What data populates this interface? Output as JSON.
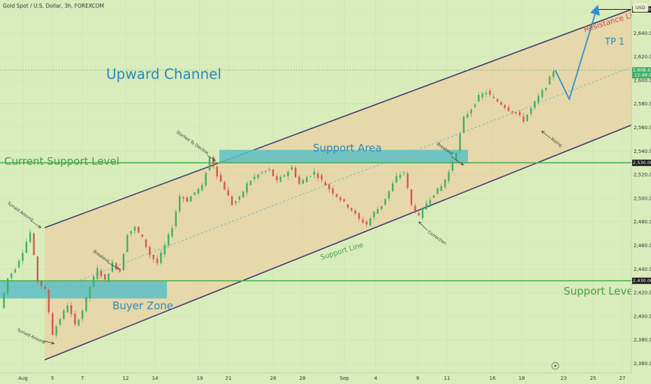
{
  "header": {
    "symbol_title": "Gold Spot / U.S. Dollar, 3h, FOREXCOM",
    "currency_button": "USD"
  },
  "colors": {
    "background": "#d9ecbc",
    "channel_line": "#3d3a6e",
    "channel_fill": "#f1c89a",
    "level_line": "#4caf50",
    "zone_fill": "#5cc0c6",
    "title_text": "#2b89ba",
    "label_text": "#43a047",
    "resistance_text": "#c0504d",
    "candle_up": "#3fae66",
    "candle_down": "#d9534f",
    "projection": "#2e8fd0"
  },
  "icons": {
    "bolt": "lightning-icon"
  },
  "chart_data": {
    "type": "candlestick",
    "title": "",
    "x_ticks": [
      "Aug",
      "5",
      "7",
      "12",
      "14",
      "19",
      "21",
      "26",
      "28",
      "Sep",
      "4",
      "9",
      "11",
      "16",
      "18",
      "23",
      "25",
      "27"
    ],
    "y_ticks": [
      2360,
      2380,
      2400,
      2420,
      2440,
      2460,
      2480,
      2500,
      2520,
      2540,
      2560,
      2580,
      2600,
      2620,
      2640,
      2660
    ],
    "ylim": [
      2352,
      2668
    ],
    "price_labels": [
      {
        "text": "2,660.00",
        "value": 2660,
        "color": "#1b1b1b"
      },
      {
        "text": "2,608.41",
        "sub": "12:49:03",
        "value": 2608.41,
        "color": "#3fae66"
      },
      {
        "text": "2,530.00",
        "value": 2530,
        "color": "#1b1b1b"
      },
      {
        "text": "2,430.00",
        "value": 2430,
        "color": "#1b1b1b"
      }
    ],
    "close_path": [
      2407,
      2432,
      2441,
      2455,
      2471,
      2430,
      2422,
      2385,
      2398,
      2410,
      2392,
      2405,
      2425,
      2440,
      2430,
      2445,
      2438,
      2470,
      2475,
      2466,
      2452,
      2445,
      2460,
      2476,
      2502,
      2498,
      2505,
      2510,
      2535,
      2520,
      2508,
      2495,
      2500,
      2512,
      2518,
      2522,
      2524,
      2514,
      2520,
      2526,
      2512,
      2518,
      2522,
      2515,
      2508,
      2502,
      2496,
      2490,
      2482,
      2478,
      2488,
      2494,
      2506,
      2518,
      2522,
      2494,
      2484,
      2496,
      2504,
      2510,
      2522,
      2540,
      2568,
      2576,
      2586,
      2590,
      2584,
      2580,
      2575,
      2572,
      2566,
      2576,
      2586,
      2595,
      2608.41
    ],
    "projection": [
      {
        "x": "21-Sep",
        "y": 2608.41
      },
      {
        "x": "23-Sep",
        "y": 2584
      },
      {
        "x": "25-Sep",
        "y": 2662
      }
    ],
    "levels": [
      {
        "name": "Current Support Level",
        "value": 2530
      },
      {
        "name": "Support Level",
        "value": 2430
      },
      {
        "name": "Resistance Line (target)",
        "value": 2660
      }
    ],
    "zones": [
      {
        "name": "Support Area",
        "low": 2530,
        "high": 2541
      },
      {
        "name": "Buyer Zone",
        "low": 2415,
        "high": 2430
      }
    ],
    "channel": {
      "upper_start": 2475,
      "upper_end": 2660,
      "lower_start": 2363,
      "lower_end": 2562
    }
  },
  "annotations": {
    "upward_channel": "Upward Channel",
    "current_support": "Current Support Level",
    "support_area": "Support Area",
    "buyer_zone": "Buyer Zone",
    "support_level": "Support Level",
    "support_line": "Support Line",
    "resistance_line": "Resistance Line",
    "tp1": "TP 1",
    "turned_around_top": "Turned Around",
    "turned_around_bottom": "Turned Around",
    "breakout_left": "Breakout",
    "started_to_decline": "Started To Decline",
    "breakout_right": "Breakout",
    "correction": "Correction",
    "rising": "Rising"
  }
}
